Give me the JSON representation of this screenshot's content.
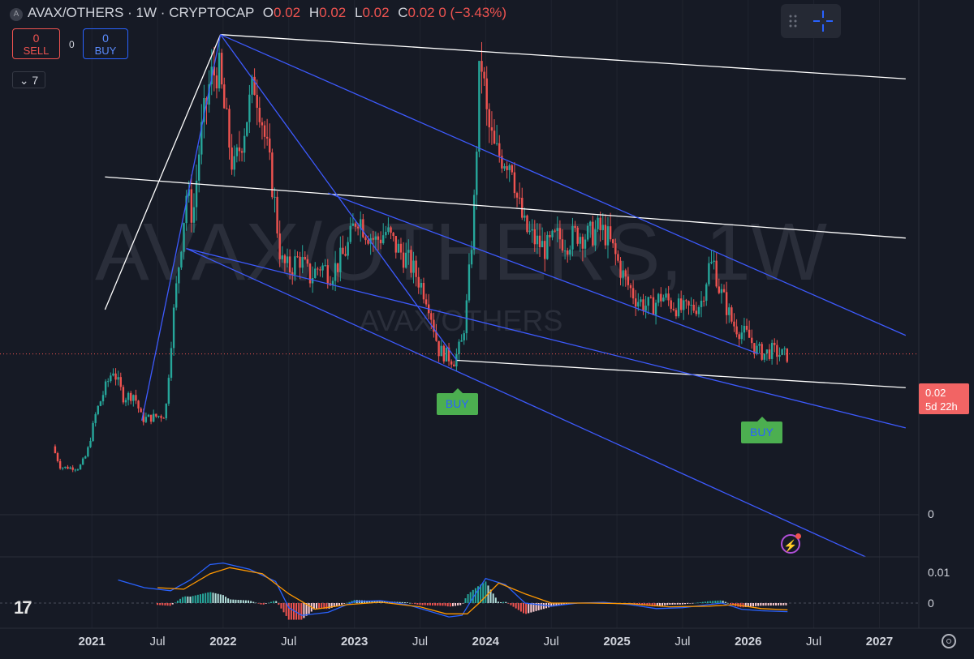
{
  "header": {
    "symbol": "AVAX/OTHERS",
    "interval": "1W",
    "exchange": "CRYPTOCAP",
    "separator": "·",
    "o_label": "O",
    "o": "0.02",
    "h_label": "H",
    "h": "0.02",
    "l_label": "L",
    "l": "0.02",
    "c_label": "C",
    "c": "0.02",
    "change": "0 (−3.43%)"
  },
  "trade": {
    "sell_count": "0",
    "sell_label": "SELL",
    "spread": "0",
    "buy_count": "0",
    "buy_label": "BUY"
  },
  "indicators_count": "7",
  "watermark": {
    "main": "AVAX/OTHERS, 1W",
    "sub": "AVAX/OTHERS"
  },
  "price_tag": {
    "price": "0.02",
    "countdown": "5d 22h"
  },
  "signals": [
    {
      "label": "BUY",
      "t": 2023.78
    },
    {
      "label": "BUY",
      "t": 2026.1
    }
  ],
  "colors": {
    "up": "#26a69a",
    "down": "#ef5350",
    "trendline": "#ffffff",
    "channel": "#3d5afe",
    "macd": "#2962ff",
    "signal": "#ff9800",
    "price_tag": "#f26464"
  },
  "chart_data": [
    {
      "type": "candlestick",
      "title": "AVAX/OTHERS · 1W · CRYPTOCAP",
      "x_range": [
        2020.3,
        2027.3
      ],
      "y_range": [
        0,
        0.064
      ],
      "y_ticks": [
        {
          "value": 0,
          "label": "0"
        }
      ],
      "current_price": 0.02,
      "x_ticks": [
        {
          "t": 2021.0,
          "label": "2021",
          "major": true
        },
        {
          "t": 2021.5,
          "label": "Jul",
          "major": false
        },
        {
          "t": 2022.0,
          "label": "2022",
          "major": true
        },
        {
          "t": 2022.5,
          "label": "Jul",
          "major": false
        },
        {
          "t": 2023.0,
          "label": "2023",
          "major": true
        },
        {
          "t": 2023.5,
          "label": "Jul",
          "major": false
        },
        {
          "t": 2024.0,
          "label": "2024",
          "major": true
        },
        {
          "t": 2024.5,
          "label": "Jul",
          "major": false
        },
        {
          "t": 2025.0,
          "label": "2025",
          "major": true
        },
        {
          "t": 2025.5,
          "label": "Jul",
          "major": false
        },
        {
          "t": 2026.0,
          "label": "2026",
          "major": true
        },
        {
          "t": 2026.5,
          "label": "Jul",
          "major": false
        },
        {
          "t": 2027.0,
          "label": "2027",
          "major": true
        }
      ],
      "price_path": [
        [
          2020.72,
          0.0085
        ],
        [
          2020.78,
          0.0059
        ],
        [
          2020.92,
          0.0058
        ],
        [
          2020.98,
          0.0075
        ],
        [
          2021.05,
          0.0126
        ],
        [
          2021.12,
          0.0157
        ],
        [
          2021.18,
          0.0181
        ],
        [
          2021.26,
          0.0146
        ],
        [
          2021.34,
          0.015
        ],
        [
          2021.4,
          0.0119
        ],
        [
          2021.48,
          0.0121
        ],
        [
          2021.58,
          0.0125
        ],
        [
          2021.63,
          0.0231
        ],
        [
          2021.69,
          0.0325
        ],
        [
          2021.74,
          0.04
        ],
        [
          2021.79,
          0.037
        ],
        [
          2021.84,
          0.046
        ],
        [
          2021.92,
          0.054
        ],
        [
          2021.98,
          0.0558
        ],
        [
          2022.04,
          0.049
        ],
        [
          2022.1,
          0.0425
        ],
        [
          2022.16,
          0.0468
        ],
        [
          2022.22,
          0.051
        ],
        [
          2022.26,
          0.0538
        ],
        [
          2022.3,
          0.051
        ],
        [
          2022.34,
          0.0465
        ],
        [
          2022.4,
          0.0405
        ],
        [
          2022.46,
          0.0315
        ],
        [
          2022.52,
          0.0305
        ],
        [
          2022.6,
          0.032
        ],
        [
          2022.68,
          0.0295
        ],
        [
          2022.76,
          0.031
        ],
        [
          2022.84,
          0.03
        ],
        [
          2022.92,
          0.0318
        ],
        [
          2022.98,
          0.0338
        ],
        [
          2023.04,
          0.0375
        ],
        [
          2023.1,
          0.0355
        ],
        [
          2023.18,
          0.034
        ],
        [
          2023.26,
          0.0352
        ],
        [
          2023.34,
          0.0332
        ],
        [
          2023.42,
          0.0318
        ],
        [
          2023.5,
          0.0295
        ],
        [
          2023.58,
          0.0268
        ],
        [
          2023.66,
          0.0205
        ],
        [
          2023.72,
          0.0198
        ],
        [
          2023.78,
          0.0192
        ],
        [
          2023.84,
          0.0215
        ],
        [
          2023.88,
          0.0268
        ],
        [
          2023.93,
          0.038
        ],
        [
          2023.97,
          0.054
        ],
        [
          2023.99,
          0.0562
        ],
        [
          2024.03,
          0.049
        ],
        [
          2024.09,
          0.045
        ],
        [
          2024.16,
          0.0445
        ],
        [
          2024.22,
          0.044
        ],
        [
          2024.26,
          0.0392
        ],
        [
          2024.32,
          0.0355
        ],
        [
          2024.4,
          0.034
        ],
        [
          2024.48,
          0.033
        ],
        [
          2024.56,
          0.0345
        ],
        [
          2024.64,
          0.034
        ],
        [
          2024.72,
          0.035
        ],
        [
          2024.8,
          0.0346
        ],
        [
          2024.88,
          0.0355
        ],
        [
          2024.94,
          0.0348
        ],
        [
          2025.0,
          0.0325
        ],
        [
          2025.08,
          0.0292
        ],
        [
          2025.16,
          0.027
        ],
        [
          2025.22,
          0.0262
        ],
        [
          2025.28,
          0.0258
        ],
        [
          2025.36,
          0.0272
        ],
        [
          2025.44,
          0.0262
        ],
        [
          2025.52,
          0.0254
        ],
        [
          2025.6,
          0.0257
        ],
        [
          2025.66,
          0.0264
        ],
        [
          2025.72,
          0.0308
        ],
        [
          2025.76,
          0.0312
        ],
        [
          2025.8,
          0.028
        ],
        [
          2025.84,
          0.0265
        ],
        [
          2025.9,
          0.0238
        ],
        [
          2025.96,
          0.0228
        ],
        [
          2026.02,
          0.0222
        ],
        [
          2026.08,
          0.0205
        ],
        [
          2026.14,
          0.02
        ],
        [
          2026.2,
          0.0204
        ],
        [
          2026.26,
          0.02
        ],
        [
          2026.3,
          0.0198
        ]
      ],
      "trendlines": [
        {
          "color": "white",
          "from": [
            2021.1,
            0.0255
          ],
          "to": [
            2021.98,
            0.0597
          ]
        },
        {
          "color": "white",
          "from": [
            2021.98,
            0.0597
          ],
          "to": [
            2027.2,
            0.0542
          ]
        },
        {
          "color": "white",
          "from": [
            2021.1,
            0.042
          ],
          "to": [
            2027.2,
            0.0344
          ]
        },
        {
          "color": "white",
          "from": [
            2023.78,
            0.0192
          ],
          "to": [
            2027.2,
            0.0158
          ]
        },
        {
          "color": "blue",
          "from": [
            2021.38,
            0.0117
          ],
          "to": [
            2021.98,
            0.0597
          ]
        },
        {
          "color": "blue",
          "from": [
            2021.98,
            0.0597
          ],
          "to": [
            2023.78,
            0.0192
          ]
        },
        {
          "color": "blue",
          "from": [
            2021.98,
            0.0597
          ],
          "to": [
            2027.2,
            0.0223
          ]
        },
        {
          "color": "blue",
          "from": [
            2021.72,
            0.0331
          ],
          "to": [
            2027.2,
            0.0108
          ]
        },
        {
          "color": "blue",
          "from": [
            2021.72,
            0.0331
          ],
          "to": [
            2027.2,
            -0.0075
          ]
        },
        {
          "color": "blue",
          "from": [
            2022.8,
            0.04
          ],
          "to": [
            2026.08,
            0.02
          ]
        }
      ]
    },
    {
      "type": "bar",
      "title": "MACD",
      "y_range": [
        -0.006,
        0.014
      ],
      "y_ticks": [
        {
          "value": 0.01,
          "label": "0.01"
        },
        {
          "value": 0,
          "label": "0"
        }
      ],
      "macd_line": [
        [
          2021.2,
          0.0075
        ],
        [
          2021.4,
          0.005
        ],
        [
          2021.6,
          0.004
        ],
        [
          2021.75,
          0.0075
        ],
        [
          2021.9,
          0.0125
        ],
        [
          2022.0,
          0.013
        ],
        [
          2022.2,
          0.011
        ],
        [
          2022.4,
          0.007
        ],
        [
          2022.5,
          -0.0015
        ],
        [
          2022.6,
          -0.004
        ],
        [
          2022.8,
          -0.003
        ],
        [
          2023.0,
          0.0005
        ],
        [
          2023.2,
          0.0008
        ],
        [
          2023.4,
          -0.0005
        ],
        [
          2023.6,
          -0.003
        ],
        [
          2023.72,
          -0.0045
        ],
        [
          2023.82,
          -0.004
        ],
        [
          2023.9,
          0.0015
        ],
        [
          2024.0,
          0.008
        ],
        [
          2024.15,
          0.006
        ],
        [
          2024.3,
          0.0
        ],
        [
          2024.5,
          -0.001
        ],
        [
          2024.7,
          0.0
        ],
        [
          2024.9,
          0.0002
        ],
        [
          2025.1,
          -0.0005
        ],
        [
          2025.3,
          -0.0018
        ],
        [
          2025.5,
          -0.0015
        ],
        [
          2025.7,
          -0.0005
        ],
        [
          2025.8,
          0.0
        ],
        [
          2025.95,
          -0.002
        ],
        [
          2026.1,
          -0.0025
        ],
        [
          2026.3,
          -0.0028
        ]
      ],
      "signal_line": [
        [
          2021.5,
          0.005
        ],
        [
          2021.7,
          0.0045
        ],
        [
          2021.9,
          0.0095
        ],
        [
          2022.05,
          0.0115
        ],
        [
          2022.3,
          0.0095
        ],
        [
          2022.5,
          0.003
        ],
        [
          2022.7,
          -0.002
        ],
        [
          2022.95,
          -0.0005
        ],
        [
          2023.2,
          0.0003
        ],
        [
          2023.5,
          -0.0012
        ],
        [
          2023.7,
          -0.0035
        ],
        [
          2023.86,
          -0.0035
        ],
        [
          2023.95,
          0.0
        ],
        [
          2024.1,
          0.0065
        ],
        [
          2024.3,
          0.003
        ],
        [
          2024.5,
          0.0
        ],
        [
          2024.8,
          0.0
        ],
        [
          2025.1,
          -0.0002
        ],
        [
          2025.4,
          -0.0012
        ],
        [
          2025.7,
          -0.001
        ],
        [
          2025.9,
          -0.0005
        ],
        [
          2026.1,
          -0.0018
        ],
        [
          2026.3,
          -0.0022
        ]
      ]
    }
  ]
}
